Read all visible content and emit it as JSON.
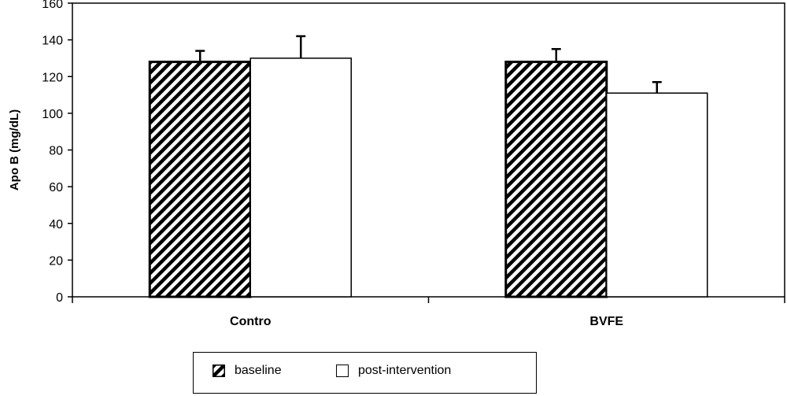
{
  "chart_data": {
    "type": "bar",
    "categories": [
      "Contro",
      "BVFE"
    ],
    "series": [
      {
        "name": "baseline",
        "values": [
          128,
          128
        ],
        "errors": [
          6,
          7
        ],
        "pattern": "diagonal-hatch"
      },
      {
        "name": "post-intervention",
        "values": [
          130,
          111
        ],
        "errors": [
          12,
          6
        ],
        "pattern": "white"
      }
    ],
    "ylabel": "Apo B (mg/dL)",
    "xlabel": "",
    "ylim": [
      0,
      160
    ],
    "yticks": [
      0,
      20,
      40,
      60,
      80,
      100,
      120,
      140,
      160
    ],
    "grid": false,
    "legend_position": "bottom-center"
  },
  "colors": {
    "bar_border": "#000000",
    "hatch": "#000000",
    "background": "#ffffff"
  }
}
